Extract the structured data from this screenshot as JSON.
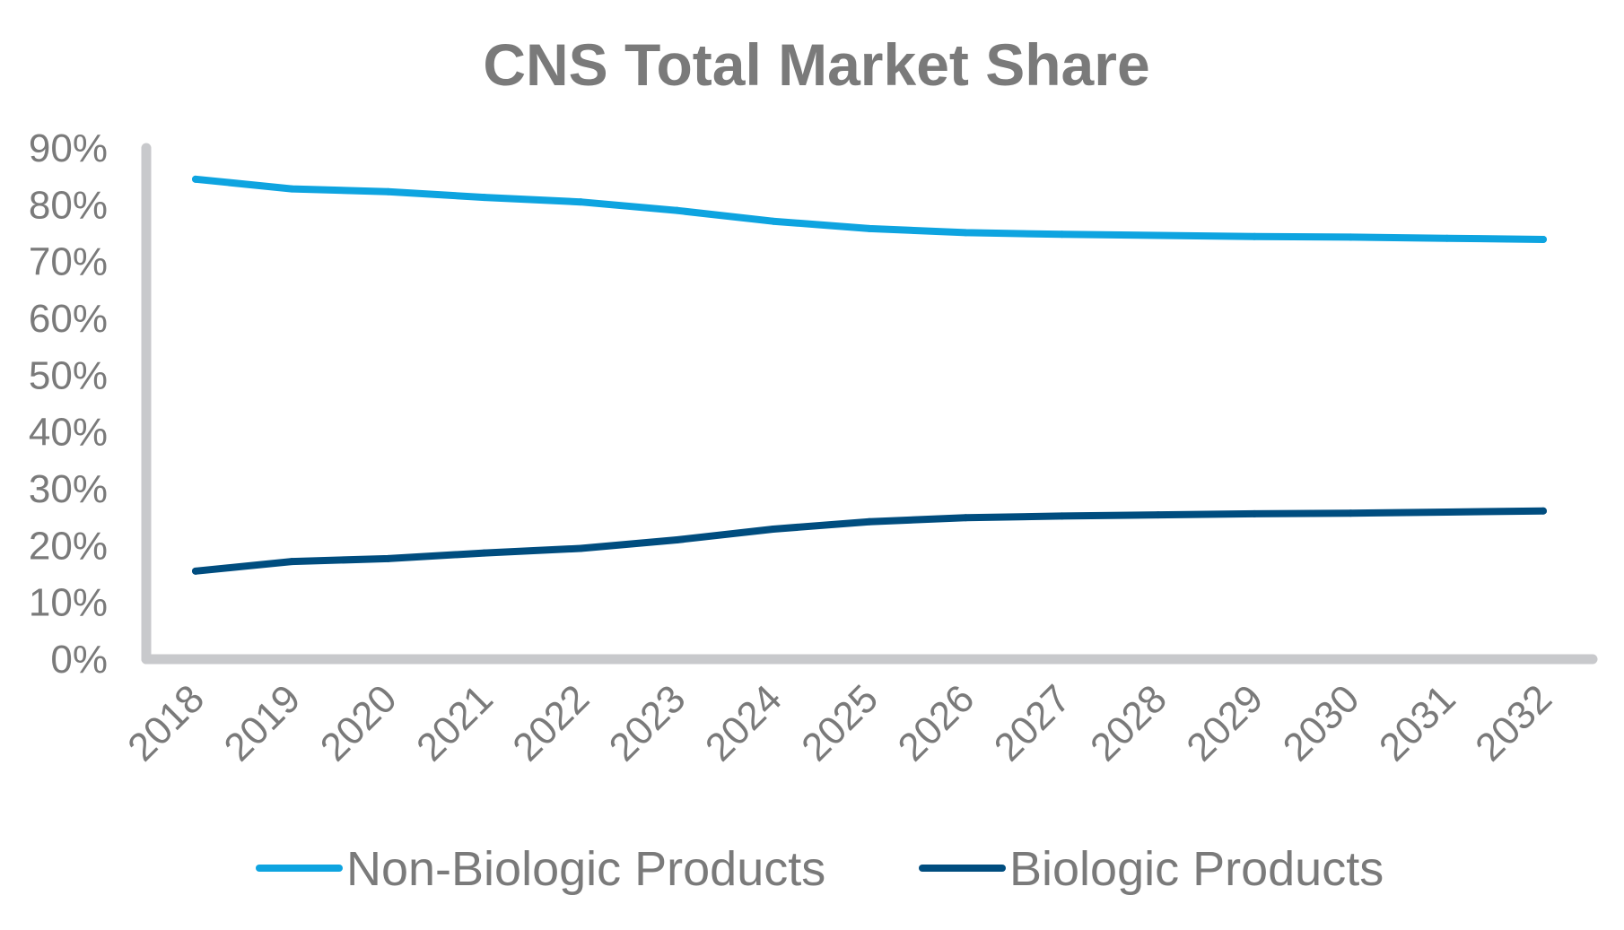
{
  "chart_data": {
    "type": "line",
    "title": "CNS Total Market Share",
    "xlabel": "",
    "ylabel": "",
    "x": [
      "2018",
      "2019",
      "2020",
      "2021",
      "2022",
      "2023",
      "2024",
      "2025",
      "2026",
      "2027",
      "2028",
      "2029",
      "2030",
      "2031",
      "2032"
    ],
    "y_ticks": [
      "0%",
      "10%",
      "20%",
      "30%",
      "40%",
      "50%",
      "60%",
      "70%",
      "80%",
      "90%"
    ],
    "ylim": [
      0,
      90
    ],
    "grid": false,
    "legend_position": "bottom",
    "series": [
      {
        "name": "Non-Biologic Products",
        "color": "#0ea4e0",
        "values": [
          84.5,
          82.8,
          82.3,
          81.3,
          80.5,
          79.0,
          77.1,
          75.8,
          75.1,
          74.8,
          74.6,
          74.4,
          74.3,
          74.1,
          73.9
        ]
      },
      {
        "name": "Biologic Products",
        "color": "#004d7f",
        "values": [
          15.5,
          17.2,
          17.7,
          18.7,
          19.5,
          21.0,
          22.9,
          24.2,
          24.9,
          25.2,
          25.4,
          25.6,
          25.7,
          25.9,
          26.1
        ]
      }
    ],
    "axis_color": "#c8c9cc"
  }
}
